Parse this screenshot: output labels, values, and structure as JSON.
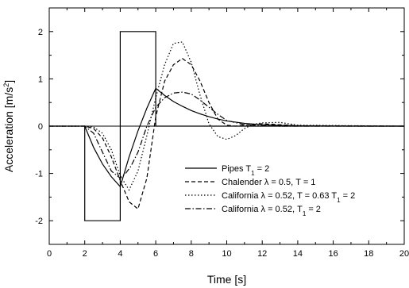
{
  "chart_data": {
    "type": "line",
    "title": "",
    "xlabel": "Time [s]",
    "ylabel_html": "Acceleration [m/s<tspan baseline-shift=\"super\" font-size=\"9\">2</tspan>]",
    "ylabel": "Acceleration [m/s2]",
    "xlim": [
      0,
      20
    ],
    "ylim": [
      -2.5,
      2.5
    ],
    "xticks": [
      0,
      2,
      4,
      6,
      8,
      10,
      12,
      14,
      16,
      18,
      20
    ],
    "yticks": [
      -2,
      -1,
      0,
      1,
      2
    ],
    "grid": false,
    "legend_position": "bottom-right",
    "series": [
      {
        "name": "Pipes T",
        "name_sub": "1",
        "name_suffix": " = 2",
        "dash": "",
        "x": [
          0,
          2,
          2,
          4,
          4,
          6,
          6,
          20
        ],
        "y": [
          0,
          0,
          -2,
          -2,
          2,
          2,
          0,
          0
        ]
      },
      {
        "name": "Pipes T",
        "name_sub": "1",
        "name_suffix": " = 2",
        "dash": "",
        "legend": false,
        "x": [
          2.0,
          2.5,
          3.0,
          3.5,
          4.0,
          4.5,
          5.0,
          5.5,
          6.0,
          6.5,
          7.0,
          7.5,
          8.0,
          8.5,
          9.0,
          9.5,
          10.0,
          11.0,
          12.0,
          13.0,
          14.0,
          16.0,
          18.0,
          20.0
        ],
        "y": [
          0,
          -0.45,
          -0.8,
          -1.07,
          -1.28,
          -0.65,
          -0.1,
          0.38,
          0.8,
          0.65,
          0.52,
          0.42,
          0.33,
          0.26,
          0.2,
          0.15,
          0.11,
          0.06,
          0.03,
          0.015,
          0.008,
          0.002,
          0,
          0
        ]
      },
      {
        "name": "Chalender λ = 0.5, T = 1",
        "dash": "5,3",
        "x": [
          0,
          2.0,
          2.5,
          3.0,
          3.5,
          4.0,
          4.5,
          5.0,
          5.5,
          6.0,
          6.5,
          7.0,
          7.5,
          8.0,
          8.5,
          9.0,
          9.5,
          10.0,
          10.5,
          11.0,
          12.0,
          13.0,
          14.0,
          20.0
        ],
        "y": [
          0,
          0,
          -0.05,
          -0.25,
          -0.65,
          -1.15,
          -1.6,
          -1.75,
          -1.1,
          0.2,
          0.95,
          1.3,
          1.43,
          1.3,
          0.95,
          0.5,
          0.15,
          0.02,
          0.0,
          0.02,
          0.05,
          0.03,
          0.01,
          0
        ]
      },
      {
        "name": "California λ = 0.52, T = 0.63 T",
        "name_sub": "1",
        "name_suffix": " = 2",
        "dash": "1.5,2.5",
        "x": [
          0,
          2.0,
          2.5,
          3.0,
          3.5,
          4.0,
          4.5,
          5.0,
          5.5,
          6.0,
          6.5,
          7.0,
          7.5,
          8.0,
          8.5,
          9.0,
          9.5,
          10.0,
          10.5,
          11.0,
          11.5,
          12.0,
          13.0,
          14.0,
          20.0
        ],
        "y": [
          0,
          0,
          -0.02,
          -0.15,
          -0.5,
          -1.05,
          -1.35,
          -0.95,
          -0.2,
          0.6,
          1.3,
          1.75,
          1.78,
          1.35,
          0.65,
          0.05,
          -0.22,
          -0.28,
          -0.2,
          -0.05,
          0.04,
          0.07,
          0.08,
          0.02,
          0
        ]
      },
      {
        "name": "California λ = 0.52, T",
        "name_sub": "1",
        "name_suffix": " = 2",
        "dash": "7,2.5,1.5,2.5",
        "x": [
          0,
          2.0,
          2.5,
          3.0,
          3.5,
          4.0,
          4.3,
          4.6,
          5.0,
          5.5,
          6.0,
          6.5,
          7.0,
          7.5,
          8.0,
          8.5,
          9.0,
          9.5,
          10.0,
          11.0,
          12.0,
          13.0,
          14.0,
          20.0
        ],
        "y": [
          0,
          0,
          -0.15,
          -0.55,
          -0.95,
          -1.1,
          -1.0,
          -0.85,
          -0.55,
          0.0,
          0.4,
          0.6,
          0.7,
          0.72,
          0.68,
          0.55,
          0.4,
          0.25,
          0.12,
          0.03,
          0.01,
          0.0,
          0.0,
          0
        ]
      }
    ]
  }
}
